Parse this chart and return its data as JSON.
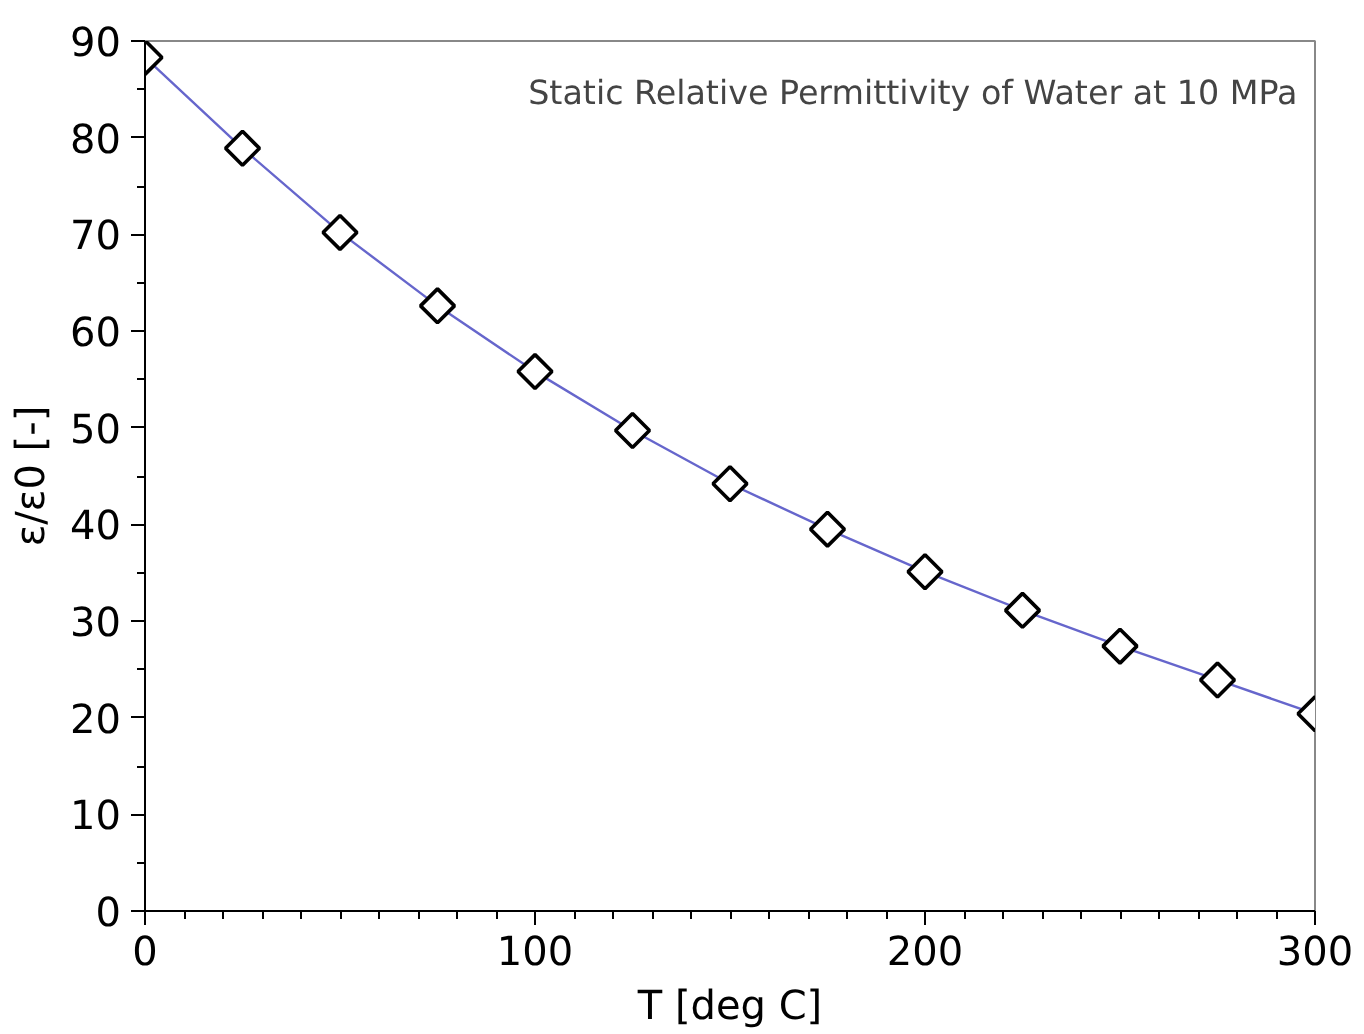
{
  "chart_data": {
    "type": "line",
    "title": "Static Relative Permittivity of Water at 10 MPa",
    "xlabel": "T [deg C]",
    "ylabel": "ε/ε0 [-]",
    "x": [
      0,
      25,
      50,
      75,
      100,
      125,
      150,
      175,
      200,
      225,
      250,
      275,
      300
    ],
    "series": [
      {
        "color": "#6666cc",
        "values": [
          88.3,
          78.9,
          70.2,
          62.6,
          55.8,
          49.7,
          44.2,
          39.5,
          35.1,
          31.1,
          27.4,
          23.9,
          20.4
        ]
      }
    ],
    "xlim": [
      0,
      300
    ],
    "ylim": [
      0,
      90
    ],
    "xticks": [
      0,
      100,
      200,
      300
    ],
    "yticks": [
      0,
      10,
      20,
      30,
      40,
      50,
      60,
      70,
      80,
      90
    ],
    "marker": "diamond",
    "grid": false
  }
}
